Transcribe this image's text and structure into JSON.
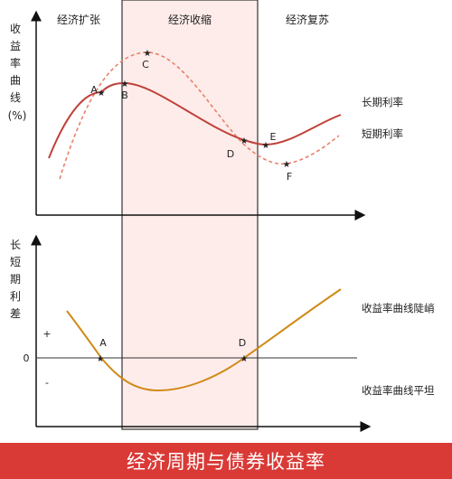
{
  "phases": [
    "经济扩张",
    "经济收缩",
    "经济复苏"
  ],
  "top_ylabel": [
    "收",
    "益",
    "率",
    "曲",
    "线",
    "(%)"
  ],
  "bottom_ylabel": [
    "长",
    "短",
    "期",
    "利",
    "差"
  ],
  "top_points": [
    "A",
    "B",
    "C",
    "D",
    "E",
    "F"
  ],
  "bottom_points": [
    "A",
    "D"
  ],
  "legend": {
    "long_rate": "长期利率",
    "short_rate": "短期利率"
  },
  "spread": {
    "plus": "+",
    "zero": "0",
    "minus": "-",
    "steep": "收益率曲线陡峭",
    "flat": "收益率曲线平坦"
  },
  "footer_title": "经济周期与债券收益率",
  "colors": {
    "long_rate": "#c0413a",
    "short_rate": "#e8826a",
    "spread": "#d08a18",
    "contraction_band": "#fdecea",
    "footer": "#d93a36"
  }
}
